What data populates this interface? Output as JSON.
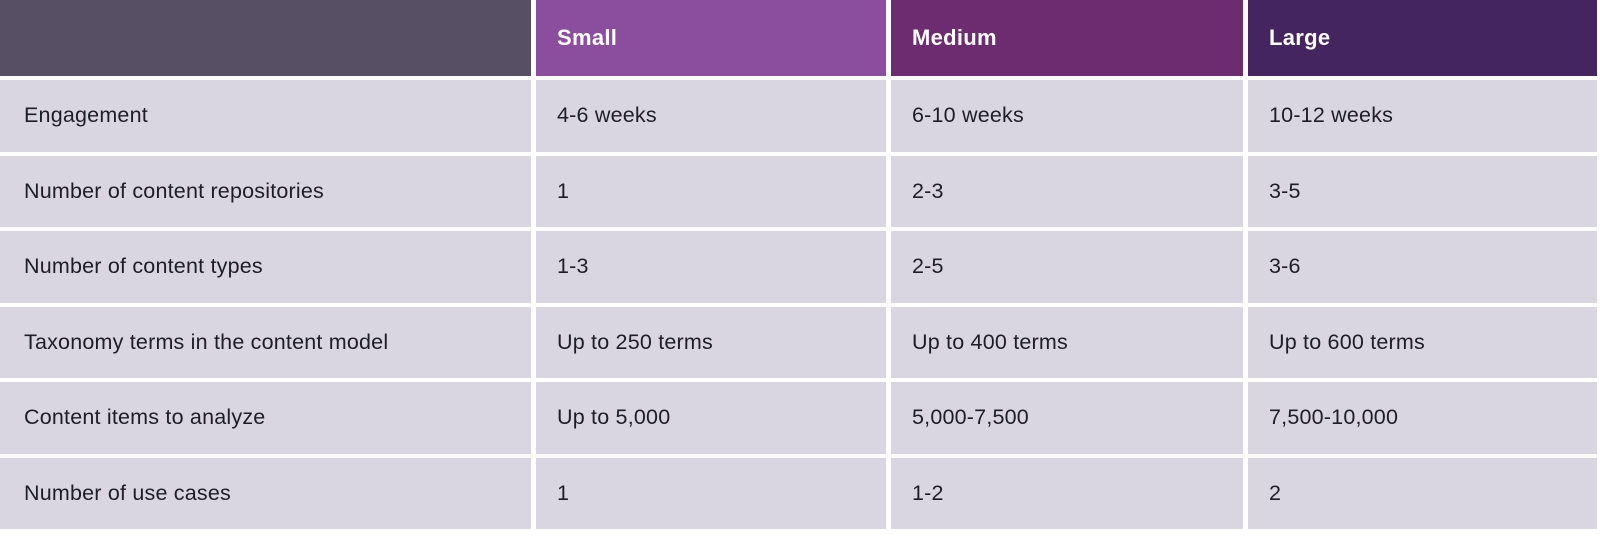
{
  "colors": {
    "page-bg": "#ffffff",
    "corner-bg": "#575064",
    "small-bg": "#8b4d9e",
    "medium-bg": "#6d2c70",
    "large-bg": "#452560",
    "cell-bg": "#d9d6e1",
    "cell-text": "#1d1d28",
    "header-text": "#ffffff"
  },
  "table": {
    "header": {
      "corner": "",
      "small": "Small",
      "medium": "Medium",
      "large": "Large"
    },
    "rows": [
      {
        "label": "Engagement",
        "small": "4-6 weeks",
        "medium": "6-10 weeks",
        "large": "10-12 weeks"
      },
      {
        "label": "Number of content repositories",
        "small": "1",
        "medium": "2-3",
        "large": "3-5"
      },
      {
        "label": "Number of content types",
        "small": "1-3",
        "medium": "2-5",
        "large": "3-6"
      },
      {
        "label": "Taxonomy terms in the content model",
        "small": "Up to 250 terms",
        "medium": "Up to 400 terms",
        "large": "Up to 600 terms"
      },
      {
        "label": "Content items to analyze",
        "small": "Up to 5,000",
        "medium": "5,000-7,500",
        "large": "7,500-10,000"
      },
      {
        "label": "Number of use cases",
        "small": "1",
        "medium": "1-2",
        "large": "2"
      }
    ]
  }
}
